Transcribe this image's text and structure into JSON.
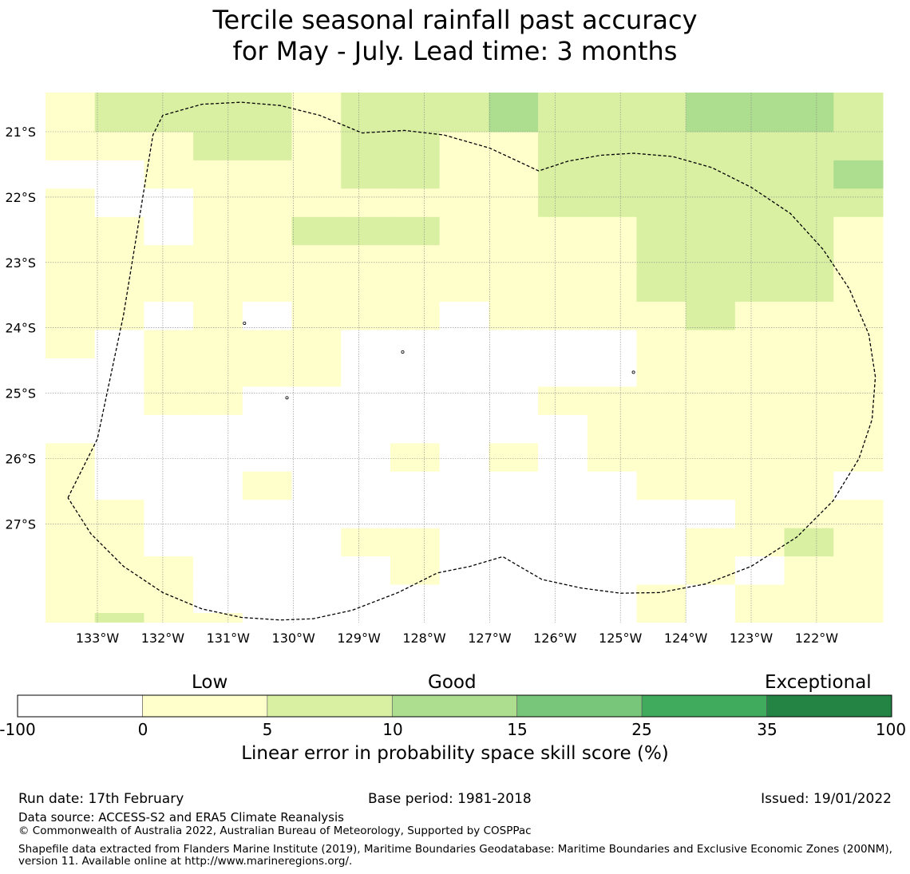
{
  "title": {
    "line1": "Tercile seasonal rainfall past accuracy",
    "line2": "for May - July. Lead time: 3 months"
  },
  "map": {
    "lon_range": [
      -133.8,
      -121.0
    ],
    "lat_range": [
      -28.5,
      -20.4
    ],
    "lon_ticks": [
      {
        "value": -133,
        "label": "133°W"
      },
      {
        "value": -132,
        "label": "132°W"
      },
      {
        "value": -131,
        "label": "131°W"
      },
      {
        "value": -130,
        "label": "130°W"
      },
      {
        "value": -129,
        "label": "129°W"
      },
      {
        "value": -128,
        "label": "128°W"
      },
      {
        "value": -127,
        "label": "127°W"
      },
      {
        "value": -126,
        "label": "126°W"
      },
      {
        "value": -125,
        "label": "125°W"
      },
      {
        "value": -124,
        "label": "124°W"
      },
      {
        "value": -123,
        "label": "123°W"
      },
      {
        "value": -122,
        "label": "122°W"
      }
    ],
    "lat_ticks": [
      {
        "value": -21,
        "label": "21°S"
      },
      {
        "value": -22,
        "label": "22°S"
      },
      {
        "value": -23,
        "label": "23°S"
      },
      {
        "value": -24,
        "label": "24°S"
      },
      {
        "value": -25,
        "label": "25°S"
      },
      {
        "value": -26,
        "label": "26°S"
      },
      {
        "value": -27,
        "label": "27°S"
      }
    ],
    "grid_note_rows": "skill category per cell: 0 = below 0 (white), 1 = 0-5, 2 = 5-10, 3 = 10-15",
    "skill_grid": [
      [
        1,
        2,
        2,
        2,
        2,
        1,
        2,
        2,
        2,
        3,
        2,
        2,
        2,
        3,
        3,
        3,
        2
      ],
      [
        1,
        1,
        1,
        2,
        2,
        1,
        2,
        2,
        1,
        1,
        2,
        2,
        2,
        2,
        2,
        2,
        2
      ],
      [
        0,
        0,
        1,
        1,
        1,
        1,
        2,
        2,
        1,
        1,
        2,
        2,
        2,
        2,
        2,
        2,
        3
      ],
      [
        1,
        0,
        0,
        1,
        1,
        1,
        1,
        1,
        1,
        1,
        2,
        2,
        2,
        2,
        2,
        2,
        2
      ],
      [
        1,
        1,
        0,
        1,
        1,
        2,
        2,
        2,
        1,
        1,
        1,
        1,
        2,
        2,
        2,
        2,
        1
      ],
      [
        1,
        1,
        1,
        1,
        1,
        1,
        1,
        1,
        1,
        1,
        1,
        1,
        2,
        2,
        2,
        2,
        1
      ],
      [
        1,
        1,
        1,
        1,
        1,
        1,
        1,
        1,
        1,
        1,
        1,
        1,
        2,
        2,
        2,
        2,
        1
      ],
      [
        1,
        1,
        0,
        1,
        0,
        1,
        1,
        1,
        0,
        1,
        1,
        1,
        1,
        2,
        1,
        1,
        1
      ],
      [
        1,
        0,
        1,
        1,
        1,
        1,
        0,
        0,
        0,
        0,
        0,
        0,
        1,
        1,
        1,
        1,
        1
      ],
      [
        0,
        0,
        1,
        1,
        1,
        1,
        0,
        0,
        0,
        0,
        0,
        0,
        1,
        1,
        1,
        1,
        1
      ],
      [
        0,
        0,
        1,
        1,
        0,
        0,
        0,
        0,
        0,
        0,
        1,
        1,
        1,
        1,
        1,
        1,
        1
      ],
      [
        0,
        0,
        0,
        0,
        0,
        0,
        0,
        0,
        0,
        0,
        0,
        1,
        1,
        1,
        1,
        1,
        1
      ],
      [
        1,
        0,
        0,
        0,
        0,
        0,
        0,
        1,
        0,
        1,
        0,
        1,
        1,
        1,
        1,
        1,
        1
      ],
      [
        1,
        0,
        0,
        0,
        1,
        0,
        0,
        0,
        0,
        0,
        0,
        0,
        1,
        1,
        1,
        1,
        0
      ],
      [
        1,
        1,
        0,
        0,
        0,
        0,
        0,
        0,
        0,
        0,
        0,
        0,
        0,
        0,
        1,
        1,
        1
      ],
      [
        1,
        1,
        0,
        0,
        0,
        0,
        1,
        1,
        0,
        0,
        0,
        0,
        0,
        1,
        1,
        2,
        1
      ],
      [
        1,
        1,
        1,
        0,
        0,
        0,
        0,
        1,
        0,
        0,
        0,
        0,
        0,
        1,
        0,
        1,
        1
      ],
      [
        1,
        1,
        1,
        0,
        0,
        0,
        0,
        0,
        0,
        0,
        0,
        0,
        1,
        0,
        1,
        1,
        1
      ]
    ],
    "top_strip_row": [
      1,
      2,
      2,
      2,
      2,
      1,
      2,
      2,
      2,
      3,
      2,
      2,
      2,
      3,
      3,
      3,
      2
    ],
    "bottom_strip_row": [
      1,
      2,
      1,
      1,
      0,
      0,
      0,
      0,
      0,
      0,
      0,
      0,
      1,
      0,
      1,
      1,
      1
    ],
    "eez_boundary": [
      [
        -133.45,
        -26.6
      ],
      [
        -133.0,
        -25.7
      ],
      [
        -132.6,
        -23.8
      ],
      [
        -132.15,
        -21.05
      ],
      [
        -132.0,
        -20.75
      ],
      [
        -131.4,
        -20.58
      ],
      [
        -130.8,
        -20.55
      ],
      [
        -130.2,
        -20.6
      ],
      [
        -129.6,
        -20.75
      ],
      [
        -128.95,
        -21.02
      ],
      [
        -128.3,
        -20.98
      ],
      [
        -127.7,
        -21.05
      ],
      [
        -127.0,
        -21.25
      ],
      [
        -126.25,
        -21.6
      ],
      [
        -125.8,
        -21.45
      ],
      [
        -125.3,
        -21.36
      ],
      [
        -124.8,
        -21.33
      ],
      [
        -124.2,
        -21.38
      ],
      [
        -123.6,
        -21.55
      ],
      [
        -123.0,
        -21.85
      ],
      [
        -122.4,
        -22.25
      ],
      [
        -121.9,
        -22.8
      ],
      [
        -121.5,
        -23.4
      ],
      [
        -121.2,
        -24.1
      ],
      [
        -121.1,
        -24.75
      ],
      [
        -121.15,
        -25.4
      ],
      [
        -121.35,
        -26.0
      ],
      [
        -121.75,
        -26.65
      ],
      [
        -122.3,
        -27.2
      ],
      [
        -123.0,
        -27.65
      ],
      [
        -123.7,
        -27.92
      ],
      [
        -124.4,
        -28.05
      ],
      [
        -125.0,
        -28.06
      ],
      [
        -125.6,
        -27.98
      ],
      [
        -126.2,
        -27.85
      ],
      [
        -126.8,
        -27.5
      ],
      [
        -127.3,
        -27.65
      ],
      [
        -127.8,
        -27.75
      ],
      [
        -128.4,
        -28.05
      ],
      [
        -129.1,
        -28.32
      ],
      [
        -129.7,
        -28.45
      ],
      [
        -130.2,
        -28.47
      ],
      [
        -130.8,
        -28.43
      ],
      [
        -131.4,
        -28.3
      ],
      [
        -132.0,
        -28.05
      ],
      [
        -132.6,
        -27.65
      ],
      [
        -133.1,
        -27.15
      ],
      [
        -133.45,
        -26.6
      ]
    ],
    "islands": [
      [
        -130.75,
        -23.93
      ],
      [
        -128.33,
        -24.37
      ],
      [
        -130.1,
        -25.07
      ],
      [
        -124.8,
        -24.68
      ]
    ]
  },
  "legend": {
    "words": {
      "low": "Low",
      "good": "Good",
      "exceptional": "Exceptional"
    },
    "colors": [
      "#ffffff",
      "#ffffcc",
      "#d9f0a3",
      "#addd8e",
      "#78c679",
      "#41ab5d",
      "#238443"
    ],
    "boundaries": [
      "-100",
      "0",
      "5",
      "10",
      "15",
      "25",
      "35",
      "100"
    ],
    "title": "Linear error in probability space skill score (%)"
  },
  "footer": {
    "run_date": "Run date: 17th February",
    "base_period": "Base period: 1981-2018",
    "issued": "Issued: 19/01/2022",
    "data_source": "Data source: ACCESS-S2 and ERA5 Climate Reanalysis",
    "copyright": "© Commonwealth of Australia 2022, Australian Bureau of Meteorology, Supported by COSPPac",
    "shapefile": "Shapefile data extracted from Flanders Marine Institute (2019), Maritime Boundaries Geodatabase: Maritime Boundaries and Exclusive Economic Zones (200NM), version 11. Available online at http://www.marineregions.org/."
  }
}
